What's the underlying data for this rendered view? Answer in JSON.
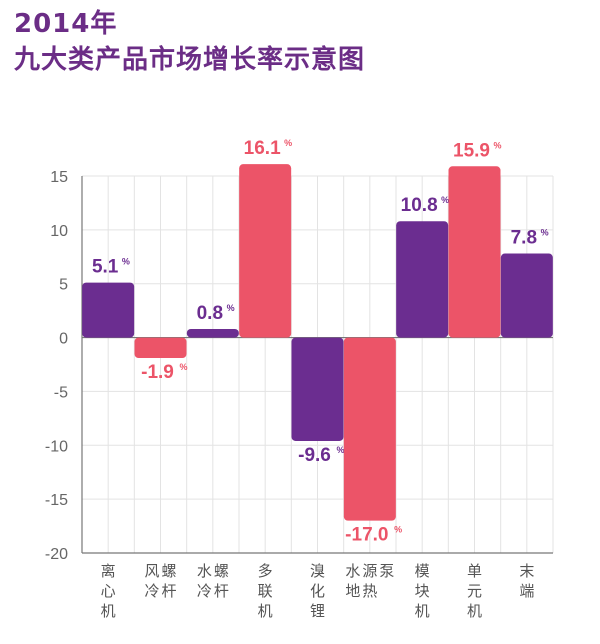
{
  "header": {
    "title_line1": "2014年",
    "title_line2": "九大类产品市场增长率示意图"
  },
  "colors": {
    "purple": "#6b2d90",
    "pink": "#ec5468",
    "grid": "#e3e3e3",
    "axis": "#777777"
  },
  "chart_data": {
    "type": "bar",
    "title": "2014年 九大类产品市场增长率示意图",
    "xlabel": "",
    "ylabel": "",
    "ylim": [
      -20,
      15
    ],
    "yticks": [
      15,
      10,
      5,
      0,
      -5,
      -10,
      -15,
      -20
    ],
    "categories": [
      "离心机",
      "风冷螺杆",
      "水冷螺杆",
      "多联机",
      "溴化锂",
      "水地源热泵",
      "模块机",
      "单元机",
      "末端"
    ],
    "values": [
      5.1,
      -1.9,
      0.8,
      16.1,
      -9.6,
      -17.0,
      10.8,
      15.9,
      7.8
    ],
    "value_labels": [
      "5.1",
      "-1.9",
      "0.8",
      "16.1",
      "-9.6",
      "-17.0",
      "10.8",
      "15.9",
      "7.8"
    ],
    "unit": "%",
    "bar_colors": [
      "purple",
      "pink",
      "purple",
      "pink",
      "purple",
      "pink",
      "purple",
      "pink",
      "purple"
    ],
    "grid": true
  }
}
